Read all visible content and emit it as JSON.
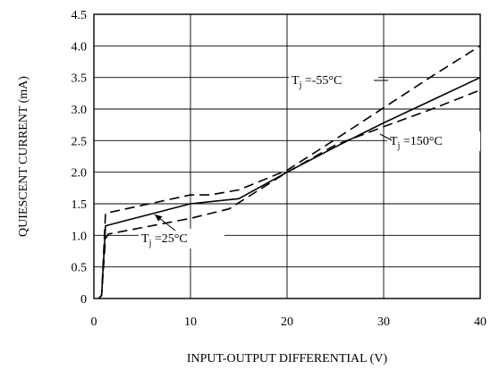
{
  "chart_data": {
    "type": "line",
    "title": "",
    "xlabel": "INPUT-OUTPUT DIFFERENTIAL (V)",
    "ylabel": "QUIESCENT CURRENT (mA)",
    "xlim": [
      0,
      40
    ],
    "ylim": [
      0,
      4.5
    ],
    "x_ticks": [
      "0",
      "10",
      "20",
      "30",
      "40"
    ],
    "y_ticks": [
      "0",
      "0.5",
      "1.0",
      "1.5",
      "2.0",
      "2.5",
      "3.0",
      "3.5",
      "4.0",
      "4.5"
    ],
    "grid": true,
    "series": [
      {
        "name": "Tj =25°C",
        "annotation": {
          "main": "T",
          "sub": "j",
          "rest": " =25°C"
        },
        "style": "solid",
        "color": "#000000",
        "x": [
          0.5,
          0.8,
          1.2,
          10,
          15,
          20,
          25,
          30,
          35,
          40
        ],
        "y": [
          0,
          0.05,
          1.15,
          1.5,
          1.58,
          2.0,
          2.4,
          2.78,
          3.14,
          3.5
        ]
      },
      {
        "name": "Tj =-55°C",
        "annotation": {
          "main": "T",
          "sub": "j",
          "rest": " =-55°C"
        },
        "style": "dashed",
        "color": "#000000",
        "x": [
          0.5,
          0.8,
          1.2,
          10,
          12,
          15,
          20,
          25,
          30,
          35,
          40
        ],
        "y": [
          0,
          0.05,
          1.35,
          1.64,
          1.64,
          1.72,
          2.03,
          2.52,
          3.02,
          3.52,
          4.0
        ]
      },
      {
        "name": "Tj =150°C",
        "annotation": {
          "main": "T",
          "sub": "j",
          "rest": " =150°C"
        },
        "style": "dashed",
        "color": "#000000",
        "x": [
          0.5,
          0.8,
          1.2,
          1.5,
          10,
          14,
          20,
          25,
          30,
          35,
          40
        ],
        "y": [
          0,
          0.05,
          0.95,
          1.02,
          1.27,
          1.42,
          2.0,
          2.43,
          2.72,
          3.0,
          3.3
        ]
      }
    ]
  }
}
